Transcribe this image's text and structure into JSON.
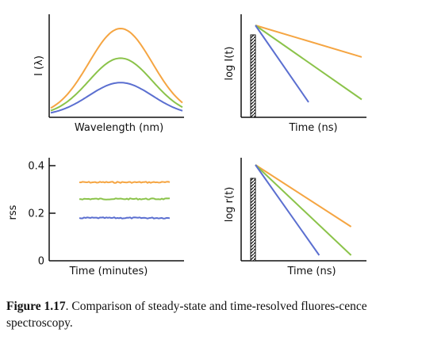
{
  "colors": {
    "orange": "#f5a542",
    "green": "#8bc34a",
    "blue": "#5b6fd0",
    "axis": "#111111"
  },
  "caption": {
    "label": "Figure 1.17",
    "text": ". Comparison of steady-state and time-resolved fluores-cence spectroscopy."
  },
  "chart_data": [
    {
      "panel": "top-left",
      "type": "line",
      "xlabel": "Wavelength (nm)",
      "ylabel": "I (λ)",
      "series": [
        {
          "color": "orange",
          "peak": 1.0
        },
        {
          "color": "green",
          "peak": 0.66
        },
        {
          "color": "blue",
          "peak": 0.38
        }
      ]
    },
    {
      "panel": "top-right",
      "type": "line",
      "xlabel": "Time (ns)",
      "ylabel": "log I(t)",
      "pulse": "excitation pulse (hatched bar)",
      "series": [
        {
          "color": "orange",
          "start": 1.0,
          "end": 0.65,
          "t_end": 1.0
        },
        {
          "color": "green",
          "start": 1.0,
          "end": 0.18,
          "t_end": 1.0
        },
        {
          "color": "blue",
          "start": 1.0,
          "end": 0.15,
          "t_end": 0.5
        }
      ]
    },
    {
      "panel": "bottom-left",
      "type": "line",
      "xlabel": "Time (minutes)",
      "ylabel": "rss",
      "ytick_labels": [
        "0",
        "0.2",
        "0.4"
      ],
      "yticks": [
        0,
        0.2,
        0.4
      ],
      "ylim": [
        0,
        0.4
      ],
      "series": [
        {
          "color": "orange",
          "value": 0.33
        },
        {
          "color": "green",
          "value": 0.26
        },
        {
          "color": "blue",
          "value": 0.18
        }
      ]
    },
    {
      "panel": "bottom-right",
      "type": "line",
      "xlabel": "Time (ns)",
      "ylabel": "log r(t)",
      "pulse": "excitation pulse (hatched bar)",
      "series": [
        {
          "color": "orange",
          "start": 1.0,
          "end": 0.35,
          "t_end": 0.9
        },
        {
          "color": "green",
          "start": 1.0,
          "end": 0.05,
          "t_end": 0.9
        },
        {
          "color": "blue",
          "start": 1.0,
          "end": 0.05,
          "t_end": 0.6
        }
      ]
    }
  ]
}
